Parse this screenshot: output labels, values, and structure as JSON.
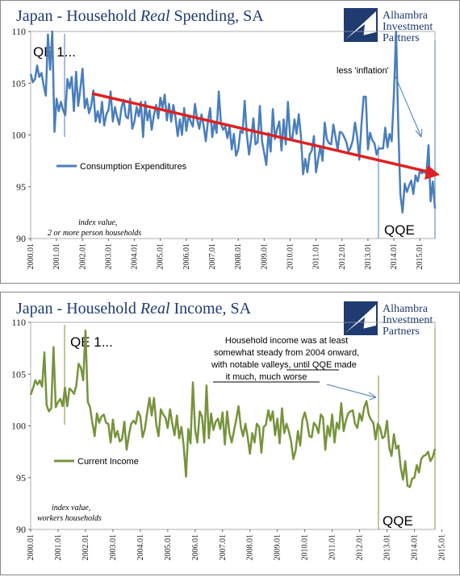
{
  "chart_data": [
    {
      "type": "line",
      "title_pre": "Japan - Household ",
      "title_em": "Real",
      "title_post": " Spending, SA",
      "ylim": [
        90,
        110
      ],
      "yticks": [
        "110",
        "105",
        "100",
        "95",
        "90"
      ],
      "xticks": [
        "2000.01",
        "2001.01",
        "2002.01",
        "2003.01",
        "2004.01",
        "2005.01",
        "2006.01",
        "2007.01",
        "2008.01",
        "2009.01",
        "2010.01",
        "2011.01",
        "2012.01",
        "2013.01",
        "2014.01",
        "2015.01"
      ],
      "series_color": "#4a7ebb",
      "series": [
        {
          "name": "Consumption Expenditures",
          "values": [
            105.9,
            105.1,
            105.4,
            106.7,
            105.6,
            106.0,
            104.8,
            103.8,
            109.7,
            106.3,
            110.0,
            100.3,
            103.5,
            102.3,
            103.2,
            102.4,
            101.9,
            105.4,
            104.5,
            105.6,
            102.3,
            106.1,
            102.8,
            104.5,
            106.4,
            102.6,
            103.5,
            102.1,
            102.8,
            104.3,
            101.3,
            102.3,
            101.2,
            103.2,
            100.9,
            102.0,
            102.4,
            104.2,
            101.3,
            102.7,
            101.7,
            101.0,
            102.6,
            103.4,
            101.8,
            101.6,
            103.5,
            100.6,
            101.3,
            102.7,
            101.8,
            103.2,
            99.8,
            103.2,
            101.4,
            102.4,
            100.5,
            101.9,
            102.9,
            101.6,
            103.6,
            102.6,
            103.9,
            101.4,
            103.0,
            101.3,
            102.9,
            101.7,
            99.9,
            101.5,
            100.0,
            102.6,
            100.4,
            101.9,
            101.3,
            100.8,
            103.0,
            101.5,
            100.6,
            102.0,
            100.9,
            99.4,
            101.3,
            102.6,
            99.8,
            101.2,
            100.2,
            104.2,
            101.1,
            100.5,
            100.8,
            99.7,
            100.8,
            98.6,
            100.1,
            98.0,
            98.6,
            100.4,
            100.2,
            103.3,
            100.0,
            98.1,
            99.7,
            101.6,
            99.1,
            99.3,
            102.8,
            99.4,
            98.3,
            97.1,
            100.2,
            98.4,
            102.5,
            99.6,
            100.6,
            101.3,
            98.5,
            101.5,
            99.1,
            103.2,
            99.8,
            99.6,
            101.5,
            100.1,
            102.0,
            99.9,
            96.2,
            97.7,
            96.4,
            98.1,
            98.5,
            99.9,
            96.4,
            97.7,
            98.9,
            97.5,
            101.2,
            99.6,
            99.2,
            99.1,
            101.0,
            99.8,
            98.5,
            100.3,
            100.2,
            99.8,
            99.3,
            98.4,
            98.8,
            99.5,
            101.2,
            99.8,
            97.6,
            101.0,
            103.7,
            103.7,
            98.6,
            100.2,
            99.5,
            99.2,
            98.1,
            98.7,
            98.7,
            98.7,
            100.7,
            98.8,
            100.1,
            99.4,
            103.9,
            110.0,
            100.9,
            94.3,
            92.5,
            95.3,
            94.5,
            95.1,
            95.6,
            94.3,
            96.1,
            95.5,
            96.5,
            96.3,
            96.5,
            96.2,
            99.0,
            93.6,
            95.5,
            92.9
          ]
        }
      ],
      "qe1_label": "QE 1...",
      "qqe_label": "QQE",
      "annotation": "less 'inflation'",
      "note_line1": "index value,",
      "note_line2": "2 or more person households"
    },
    {
      "type": "line",
      "title_pre": "Japan - Household ",
      "title_em": "Real",
      "title_post": " Income, SA",
      "ylim": [
        90,
        110
      ],
      "yticks": [
        "110",
        "105",
        "100",
        "95",
        "90"
      ],
      "xticks": [
        "2000.01",
        "2001.01",
        "2002.01",
        "2003.01",
        "2004.01",
        "2005.01",
        "2006.01",
        "2007.01",
        "2008.01",
        "2009.01",
        "2010.01",
        "2011.01",
        "2012.01",
        "2013.01",
        "2014.01",
        "2015.01"
      ],
      "series_color": "#77933c",
      "series": [
        {
          "name": "Current Income",
          "values": [
            103.0,
            103.6,
            104.4,
            104.0,
            104.4,
            103.8,
            107.1,
            102.0,
            101.4,
            101.7,
            107.6,
            101.8,
            102.3,
            102.6,
            101.9,
            103.7,
            101.9,
            103.6,
            103.4,
            103.1,
            103.9,
            106.0,
            105.6,
            104.4,
            109.2,
            102.3,
            101.8,
            100.3,
            99.0,
            101.2,
            100.3,
            100.9,
            101.1,
            100.3,
            100.2,
            98.4,
            100.6,
            98.9,
            99.5,
            98.5,
            98.7,
            100.4,
            97.7,
            99.1,
            100.2,
            100.5,
            100.2,
            101.4,
            100.9,
            98.9,
            99.7,
            101.3,
            102.7,
            101.0,
            102.7,
            100.1,
            99.0,
            101.6,
            101.1,
            100.8,
            99.8,
            101.6,
            100.2,
            99.1,
            101.0,
            98.8,
            99.9,
            98.1,
            95.1,
            99.7,
            98.3,
            104.2,
            99.6,
            98.4,
            101.4,
            100.9,
            98.4,
            103.9,
            98.8,
            101.2,
            99.6,
            100.4,
            100.7,
            99.7,
            101.3,
            98.2,
            101.4,
            99.3,
            98.4,
            99.5,
            100.6,
            101.9,
            99.9,
            99.0,
            100.2,
            98.9,
            97.3,
            99.3,
            98.4,
            100.2,
            99.9,
            97.4,
            99.9,
            100.1,
            101.5,
            100.5,
            101.4,
            99.1,
            100.7,
            98.3,
            101.7,
            99.3,
            100.2,
            99.5,
            98.5,
            96.8,
            97.6,
            99.5,
            98.1,
            100.6,
            101.3,
            100.4,
            99.0,
            98.9,
            100.3,
            100.0,
            99.3,
            101.1,
            100.8,
            97.7,
            100.0,
            99.0,
            101.1,
            98.4,
            100.3,
            99.7,
            102.2,
            99.5,
            100.5,
            101.2,
            101.4,
            101.5,
            100.2,
            99.8,
            101.2,
            100.5,
            101.8,
            102.4,
            101.1,
            100.6,
            100.3,
            98.7,
            100.2,
            99.8,
            98.8,
            99.0,
            100.5,
            97.9,
            97.1,
            99.2,
            97.8,
            98.1,
            96.0,
            94.8,
            96.6,
            94.2,
            94.1,
            94.9,
            95.0,
            96.2,
            95.5,
            96.8,
            97.1,
            97.2,
            97.5,
            96.6,
            97.0,
            97.8
          ]
        }
      ],
      "qe1_label": "QE 1...",
      "qqe_label": "QQE",
      "annotation_lines": [
        "Household income was at least",
        "somewhat steady from 2004 onward,",
        "with notable valleys, until QQE made",
        "it much, much worse"
      ],
      "note_line1": "index value,",
      "note_line2": "workers households"
    }
  ],
  "logo": {
    "line1": "Alhambra",
    "line2": "Investment",
    "line3": "Partners",
    "color": "#1f3b70"
  },
  "trend_color": "#e02020"
}
